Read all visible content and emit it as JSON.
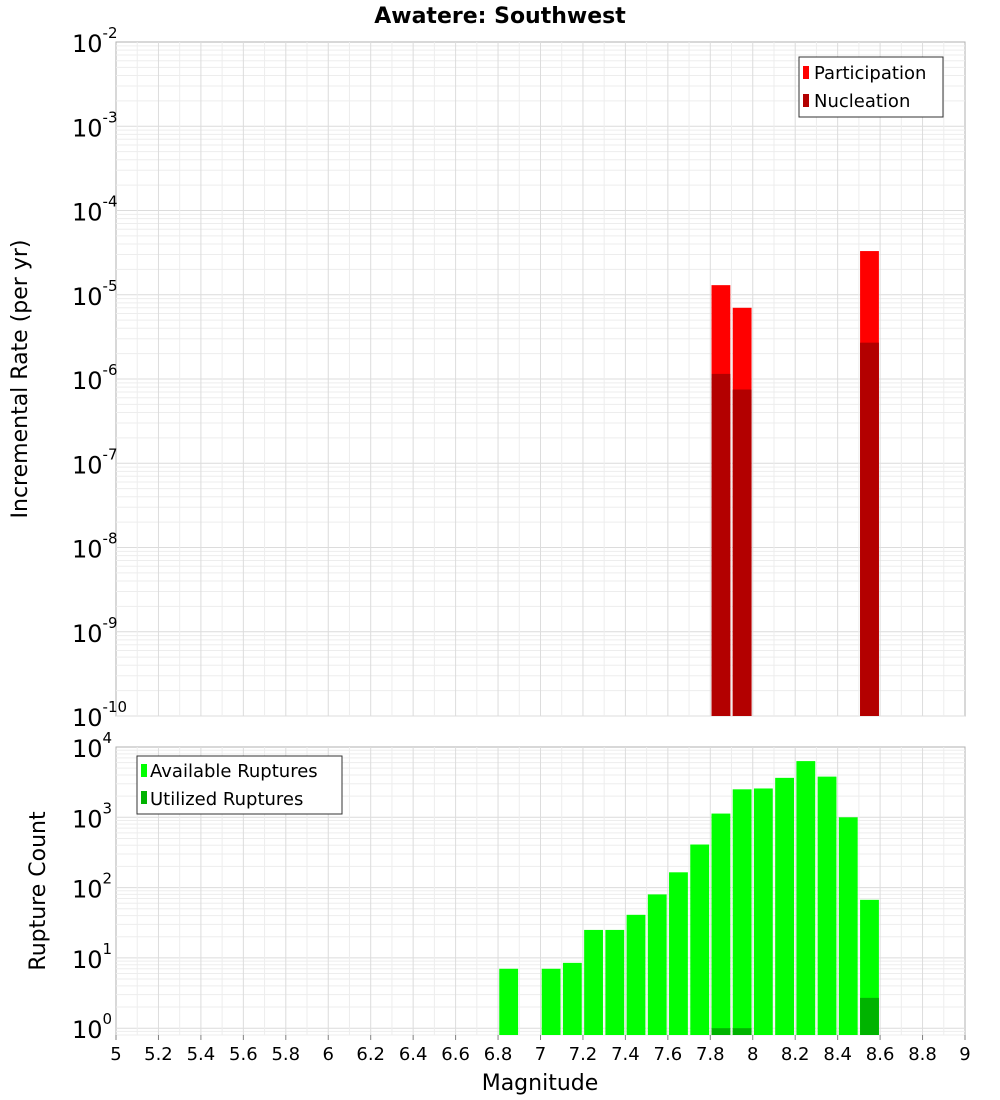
{
  "title": "Awatere: Southwest",
  "xlabel": "Magnitude",
  "chart_data": [
    {
      "type": "bar",
      "name": "rates",
      "title": "Awatere: Southwest",
      "xlabel": "Magnitude",
      "ylabel": "Incremental Rate (per yr)",
      "yscale": "log",
      "xlim": [
        5,
        9
      ],
      "ylim": [
        1e-10,
        0.01
      ],
      "ytick_exponents": [
        -2,
        -3,
        -4,
        -5,
        -6,
        -7,
        -8,
        -9,
        -10
      ],
      "grid": true,
      "legend_position": "top-right",
      "series": [
        {
          "name": "Participation",
          "color": "#ff0000",
          "x": [
            7.85,
            7.95,
            8.55
          ],
          "values": [
            1.3e-05,
            7e-06,
            3.3e-05
          ]
        },
        {
          "name": "Nucleation",
          "color": "#b30000",
          "x": [
            7.85,
            7.95,
            8.55
          ],
          "values": [
            1.15e-06,
            7.5e-07,
            2.7e-06
          ]
        }
      ]
    },
    {
      "type": "bar",
      "name": "ruptures",
      "xlabel": "Magnitude",
      "ylabel": "Rupture Count",
      "yscale": "log",
      "xlim": [
        5,
        9
      ],
      "ylim": [
        0.8,
        10000
      ],
      "ytick_exponents": [
        4,
        3,
        2,
        1,
        0
      ],
      "xticks": [
        "5",
        "5.2",
        "5.4",
        "5.6",
        "5.8",
        "6",
        "6.2",
        "6.4",
        "6.6",
        "6.8",
        "7",
        "7.2",
        "7.4",
        "7.6",
        "7.8",
        "8",
        "8.2",
        "8.4",
        "8.6",
        "8.8",
        "9"
      ],
      "grid": true,
      "legend_position": "top-left",
      "series": [
        {
          "name": "Available Ruptures",
          "color": "#00ff00",
          "x": [
            6.85,
            7.05,
            7.15,
            7.25,
            7.35,
            7.45,
            7.55,
            7.65,
            7.75,
            7.85,
            7.95,
            8.05,
            8.15,
            8.25,
            8.35,
            8.45,
            8.55
          ],
          "values": [
            7,
            7,
            8.5,
            25,
            25,
            41,
            80,
            165,
            410,
            1130,
            2500,
            2570,
            3640,
            6300,
            3790,
            1000,
            67
          ]
        },
        {
          "name": "Utilized Ruptures",
          "color": "#00b300",
          "x": [
            7.85,
            7.95,
            8.55
          ],
          "values": [
            1,
            1,
            2.7
          ]
        }
      ]
    }
  ]
}
